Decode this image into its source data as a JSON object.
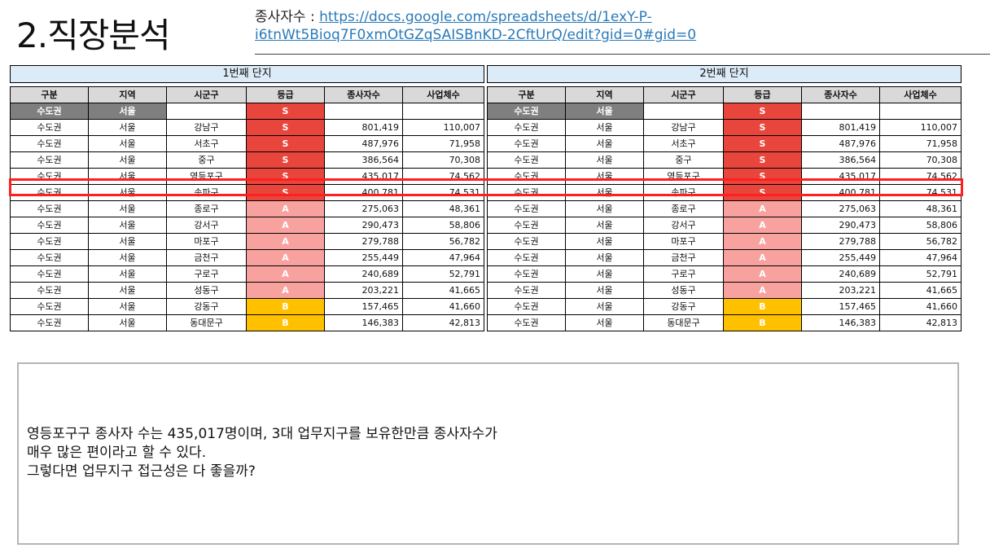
{
  "header": {
    "title": "2.직장분석",
    "source_label": "종사자수 : ",
    "source_url_line1": "https://docs.google.com/spreadsheets/d/1exY-P-",
    "source_url_line2": "i6tnWt5Bioq7F0xmOtGZqSAISBnKD-2CftUrQ/edit?gid=0#gid=0"
  },
  "columns": [
    "구분",
    "지역",
    "시군구",
    "등급",
    "종사자수",
    "사업체수"
  ],
  "tables": [
    {
      "title": "1번째 단지",
      "capital": [
        "수도권",
        "서울",
        "",
        "S",
        "",
        ""
      ],
      "rows": [
        [
          "수도권",
          "서울",
          "강남구",
          "S",
          "801,419",
          "110,007"
        ],
        [
          "수도권",
          "서울",
          "서초구",
          "S",
          "487,976",
          "71,958"
        ],
        [
          "수도권",
          "서울",
          "중구",
          "S",
          "386,564",
          "70,308"
        ],
        [
          "수도권",
          "서울",
          "영등포구",
          "S",
          "435,017",
          "74,562"
        ],
        [
          "수도권",
          "서울",
          "송파구",
          "S",
          "400,781",
          "74,531"
        ],
        [
          "수도권",
          "서울",
          "종로구",
          "A",
          "275,063",
          "48,361"
        ],
        [
          "수도권",
          "서울",
          "강서구",
          "A",
          "290,473",
          "58,806"
        ],
        [
          "수도권",
          "서울",
          "마포구",
          "A",
          "279,788",
          "56,782"
        ],
        [
          "수도권",
          "서울",
          "금천구",
          "A",
          "255,449",
          "47,964"
        ],
        [
          "수도권",
          "서울",
          "구로구",
          "A",
          "240,689",
          "52,791"
        ],
        [
          "수도권",
          "서울",
          "성동구",
          "A",
          "203,221",
          "41,665"
        ],
        [
          "수도권",
          "서울",
          "강동구",
          "B",
          "157,465",
          "41,660"
        ],
        [
          "수도권",
          "서울",
          "동대문구",
          "B",
          "146,383",
          "42,813"
        ]
      ]
    },
    {
      "title": "2번째 단지",
      "capital": [
        "수도권",
        "서울",
        "",
        "S",
        "",
        ""
      ],
      "rows": [
        [
          "수도권",
          "서울",
          "강남구",
          "S",
          "801,419",
          "110,007"
        ],
        [
          "수도권",
          "서울",
          "서초구",
          "S",
          "487,976",
          "71,958"
        ],
        [
          "수도권",
          "서울",
          "중구",
          "S",
          "386,564",
          "70,308"
        ],
        [
          "수도권",
          "서울",
          "영등포구",
          "S",
          "435,017",
          "74,562"
        ],
        [
          "수도권",
          "서울",
          "송파구",
          "S",
          "400,781",
          "74,531"
        ],
        [
          "수도권",
          "서울",
          "종로구",
          "A",
          "275,063",
          "48,361"
        ],
        [
          "수도권",
          "서울",
          "강서구",
          "A",
          "290,473",
          "58,806"
        ],
        [
          "수도권",
          "서울",
          "마포구",
          "A",
          "279,788",
          "56,782"
        ],
        [
          "수도권",
          "서울",
          "금천구",
          "A",
          "255,449",
          "47,964"
        ],
        [
          "수도권",
          "서울",
          "구로구",
          "A",
          "240,689",
          "52,791"
        ],
        [
          "수도권",
          "서울",
          "성동구",
          "A",
          "203,221",
          "41,665"
        ],
        [
          "수도권",
          "서울",
          "강동구",
          "B",
          "157,465",
          "41,660"
        ],
        [
          "수도권",
          "서울",
          "동대문구",
          "B",
          "146,383",
          "42,813"
        ]
      ]
    }
  ],
  "grade_colors": {
    "S": "#e8453c",
    "A": "#f8a2a0",
    "B": "#ffc000"
  },
  "highlight_color": "#ff1f1f",
  "note": {
    "line1": "영등포구구 종사자 수는 435,017명이며, 3대 업무지구를 보유한만큼 종사자수가",
    "line2": "매우 많은 편이라고 할 수 있다.",
    "line3": "그렇다면 업무지구 접근성은 다 좋을까?"
  }
}
